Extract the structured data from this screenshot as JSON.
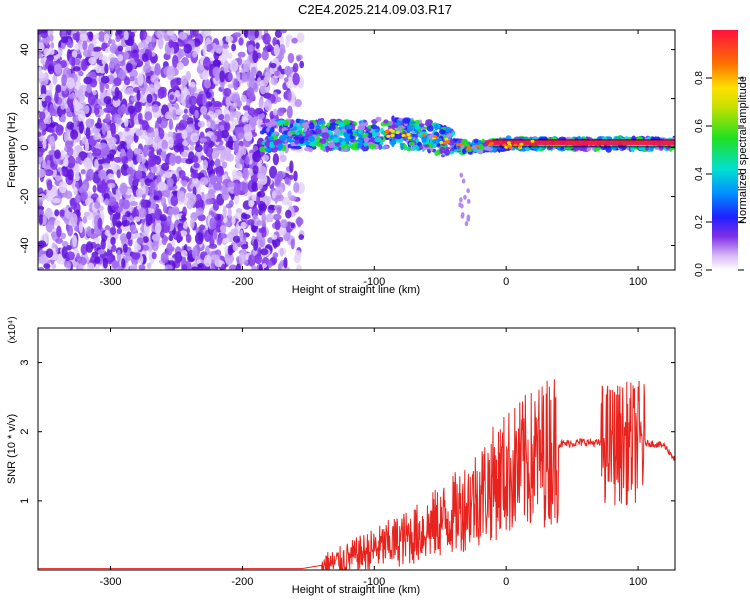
{
  "title": "C2E4.2025.214.09.03.R17",
  "chart_data": [
    {
      "type": "heatmap",
      "xlabel": "Height of straight line (km)",
      "ylabel": "Frequency (Hz)",
      "xlim": [
        -355,
        128
      ],
      "ylim": [
        -50,
        48
      ],
      "xticks": [
        -300,
        -200,
        -100,
        0,
        100
      ],
      "yticks": [
        -40,
        -20,
        0,
        20,
        40
      ],
      "colorbar": {
        "label": "Normalized spectral amplitude",
        "range": [
          0,
          1
        ],
        "ticks": [
          "0.0",
          "0.2",
          "0.4",
          "0.6",
          "0.8"
        ],
        "tick_values": [
          0.0,
          0.2,
          0.4,
          0.6,
          0.8
        ]
      },
      "noise_region_x": [
        -355,
        -155
      ],
      "signal_track": [
        {
          "x": -185,
          "y": 5
        },
        {
          "x": -150,
          "y": 5
        },
        {
          "x": -120,
          "y": 5
        },
        {
          "x": -90,
          "y": 6
        },
        {
          "x": -60,
          "y": 5
        },
        {
          "x": -40,
          "y": 1
        },
        {
          "x": -30,
          "y": 0
        },
        {
          "x": -10,
          "y": 1
        },
        {
          "x": 0,
          "y": 1.5
        },
        {
          "x": 50,
          "y": 1.5
        },
        {
          "x": 100,
          "y": 1.5
        },
        {
          "x": 128,
          "y": 1.5
        }
      ]
    },
    {
      "type": "line",
      "xlabel": "Height of straight line (km)",
      "ylabel": "SNR (10 * v/v)",
      "ylabel_multiplier": "(x10⁴)",
      "xlim": [
        -355,
        128
      ],
      "ylim": [
        0,
        3.5
      ],
      "xticks": [
        -300,
        -200,
        -100,
        0,
        100
      ],
      "yticks": [
        1,
        2,
        3
      ],
      "series": [
        {
          "color": "#e8221c",
          "trend": [
            {
              "x": -355,
              "y": 0.02
            },
            {
              "x": -155,
              "y": 0.02
            },
            {
              "x": -130,
              "y": 0.1
            },
            {
              "x": -100,
              "y": 0.3
            },
            {
              "x": -70,
              "y": 0.5
            },
            {
              "x": -40,
              "y": 0.8
            },
            {
              "x": -20,
              "y": 1.1
            },
            {
              "x": 0,
              "y": 1.4
            },
            {
              "x": 20,
              "y": 1.6
            },
            {
              "x": 40,
              "y": 1.82
            },
            {
              "x": 60,
              "y": 1.85
            },
            {
              "x": 80,
              "y": 1.82
            },
            {
              "x": 100,
              "y": 1.85
            },
            {
              "x": 120,
              "y": 1.8
            },
            {
              "x": 128,
              "y": 1.6
            }
          ]
        }
      ]
    }
  ]
}
